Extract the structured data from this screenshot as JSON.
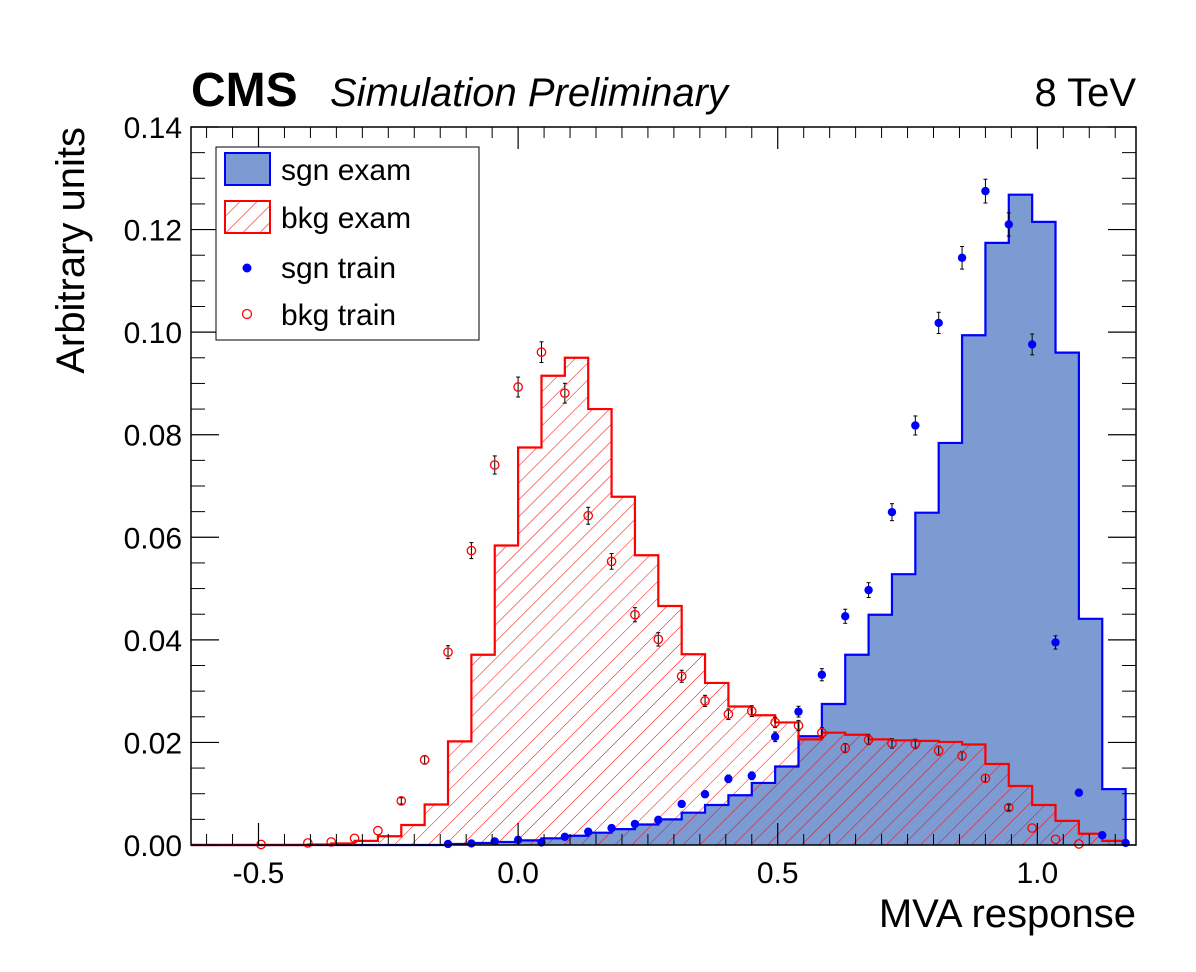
{
  "header": {
    "experiment": "CMS",
    "status": "Simulation Preliminary",
    "energy": "8 TeV"
  },
  "chart_data": {
    "type": "histogram",
    "xlabel": "MVA response",
    "ylabel": "Arbitrary units",
    "xlim": [
      -0.63,
      1.19
    ],
    "ylim": [
      0,
      0.14
    ],
    "x_ticks": [
      -0.5,
      0.0,
      0.5,
      1.0
    ],
    "x_tick_labels": [
      "-0.5",
      "0.0",
      "0.5",
      "1.0"
    ],
    "y_ticks": [
      0,
      0.02,
      0.04,
      0.06,
      0.08,
      0.1,
      0.12,
      0.14
    ],
    "y_tick_labels": [
      "0.00",
      "0.02",
      "0.04",
      "0.06",
      "0.08",
      "0.10",
      "0.12",
      "0.14"
    ],
    "bin_edges": [
      -0.63,
      -0.585,
      -0.54,
      -0.495,
      -0.45,
      -0.405,
      -0.36,
      -0.315,
      -0.27,
      -0.225,
      -0.18,
      -0.135,
      -0.09,
      -0.045,
      0.0,
      0.045,
      0.09,
      0.135,
      0.18,
      0.225,
      0.27,
      0.315,
      0.36,
      0.405,
      0.45,
      0.495,
      0.54,
      0.585,
      0.63,
      0.675,
      0.72,
      0.765,
      0.81,
      0.855,
      0.9,
      0.945,
      0.99,
      1.035,
      1.08,
      1.125,
      1.17
    ],
    "grid": false,
    "legend_position": "top-left",
    "series": [
      {
        "name": "sgn exam",
        "style": "filled-step",
        "fill_color": "#7b9bd2",
        "line_color": "#0000ff",
        "values": [
          0,
          0,
          0,
          0,
          0,
          0,
          0,
          0,
          0,
          0,
          0,
          0.0002,
          0.0004,
          0.0006,
          0.0009,
          0.0013,
          0.0018,
          0.0024,
          0.0031,
          0.004,
          0.005,
          0.0063,
          0.0078,
          0.0097,
          0.0121,
          0.0153,
          0.0212,
          0.0275,
          0.0371,
          0.0449,
          0.0528,
          0.0648,
          0.0784,
          0.0994,
          0.1174,
          0.1268,
          0.1215,
          0.096,
          0.0441,
          0.0109
        ]
      },
      {
        "name": "bkg exam",
        "style": "hatched-step",
        "line_color": "#ff0000",
        "values": [
          0,
          0,
          0,
          0,
          0,
          0.0001,
          0.0003,
          0.0008,
          0.0017,
          0.0039,
          0.0079,
          0.0202,
          0.0371,
          0.0584,
          0.0775,
          0.0915,
          0.095,
          0.085,
          0.0679,
          0.0565,
          0.0466,
          0.0372,
          0.0316,
          0.027,
          0.0253,
          0.0239,
          0.0206,
          0.0219,
          0.0215,
          0.0206,
          0.0204,
          0.0203,
          0.0201,
          0.0196,
          0.0158,
          0.0115,
          0.0078,
          0.0047,
          0.0022,
          0.0008
        ]
      },
      {
        "name": "sgn train",
        "style": "markers-filled",
        "color": "#0000ff",
        "x": [
          -0.135,
          -0.09,
          -0.045,
          0.0,
          0.045,
          0.09,
          0.135,
          0.18,
          0.225,
          0.27,
          0.315,
          0.36,
          0.405,
          0.45,
          0.495,
          0.54,
          0.585,
          0.63,
          0.675,
          0.72,
          0.765,
          0.81,
          0.855,
          0.9,
          0.945,
          0.99,
          1.035,
          1.08,
          1.125,
          1.17
        ],
        "y": [
          0.0002,
          0.0003,
          0.0007,
          0.001,
          0.0005,
          0.0016,
          0.0026,
          0.0033,
          0.0041,
          0.0049,
          0.008,
          0.0099,
          0.0129,
          0.0135,
          0.0211,
          0.026,
          0.0332,
          0.0446,
          0.0497,
          0.0649,
          0.0818,
          0.1018,
          0.1145,
          0.1275,
          0.121,
          0.0976,
          0.0395,
          0.0102,
          0.0019,
          0.0004
        ]
      },
      {
        "name": "bkg train",
        "style": "markers-open",
        "color": "#ff0000",
        "x": [
          -0.495,
          -0.405,
          -0.36,
          -0.315,
          -0.27,
          -0.225,
          -0.18,
          -0.135,
          -0.09,
          -0.045,
          0.0,
          0.045,
          0.09,
          0.135,
          0.18,
          0.225,
          0.27,
          0.315,
          0.36,
          0.405,
          0.45,
          0.495,
          0.54,
          0.585,
          0.63,
          0.675,
          0.72,
          0.765,
          0.81,
          0.855,
          0.9,
          0.945,
          0.99,
          1.035,
          1.08
        ],
        "y": [
          0.0001,
          0.0004,
          0.0006,
          0.0013,
          0.0028,
          0.0086,
          0.0166,
          0.0376,
          0.0574,
          0.0741,
          0.0893,
          0.0961,
          0.0881,
          0.0642,
          0.0553,
          0.0449,
          0.0401,
          0.0329,
          0.0281,
          0.0255,
          0.0261,
          0.0239,
          0.0233,
          0.0219,
          0.0189,
          0.0205,
          0.0198,
          0.0197,
          0.0184,
          0.0174,
          0.013,
          0.0073,
          0.0033,
          0.0011,
          0.0002
        ]
      }
    ]
  }
}
